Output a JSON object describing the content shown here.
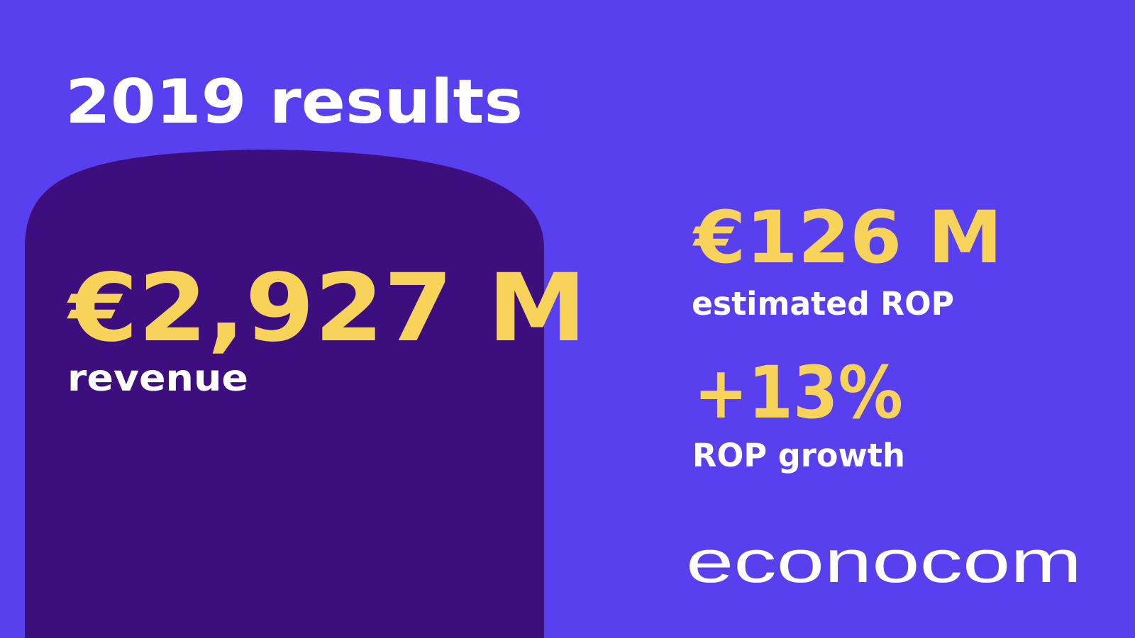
{
  "title": "2019 results",
  "stats": [
    {
      "value": "€2,927 M",
      "label": "revenue"
    },
    {
      "value": "€126 M",
      "label": "estimated ROP"
    },
    {
      "value": "+13%",
      "label": "ROP growth"
    }
  ],
  "logo": "econocom"
}
